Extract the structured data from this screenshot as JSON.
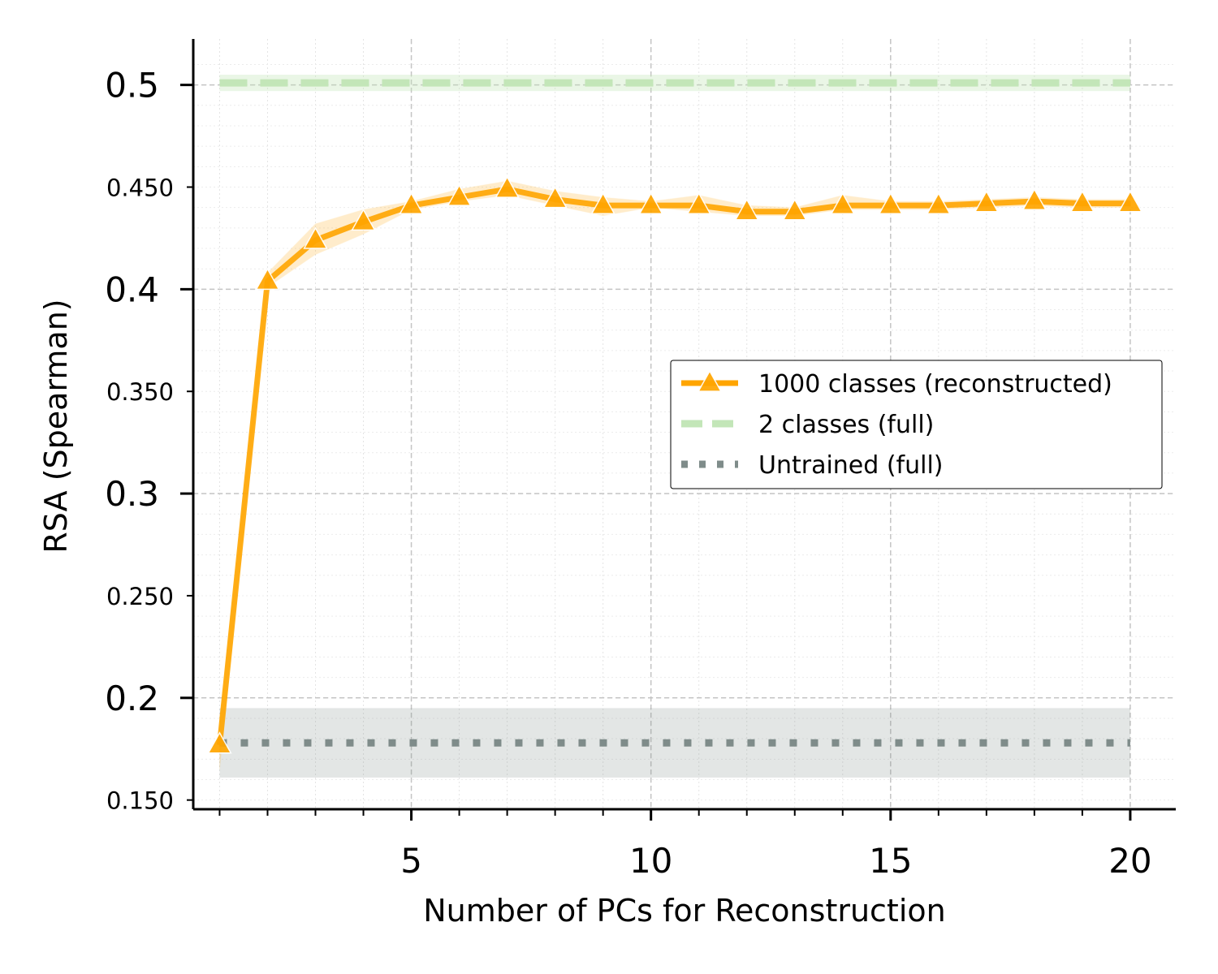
{
  "chart_data": {
    "type": "line",
    "xlabel": "Number of PCs for Reconstruction",
    "ylabel": "RSA (Spearman)",
    "xlim": [
      0.45,
      20.95
    ],
    "ylim": [
      0.1455,
      0.5225
    ],
    "x_ticks": [
      {
        "value": 5,
        "label": "5"
      },
      {
        "value": 10,
        "label": "10"
      },
      {
        "value": 15,
        "label": "15"
      },
      {
        "value": 20,
        "label": "20"
      }
    ],
    "x_minor_ticks": [
      1,
      2,
      3,
      4,
      6,
      7,
      8,
      9,
      11,
      12,
      13,
      14,
      16,
      17,
      18,
      19
    ],
    "y_major_ticks": [
      {
        "value": 0.2,
        "label": "0.2"
      },
      {
        "value": 0.3,
        "label": "0.3"
      },
      {
        "value": 0.4,
        "label": "0.4"
      },
      {
        "value": 0.5,
        "label": "0.5"
      }
    ],
    "y_minor_ticks": [
      {
        "value": 0.15,
        "label": "0.150"
      },
      {
        "value": 0.25,
        "label": "0.250"
      },
      {
        "value": 0.35,
        "label": "0.350"
      },
      {
        "value": 0.45,
        "label": "0.450"
      }
    ],
    "grid": true,
    "legend_position": "center-right",
    "series": [
      {
        "name": "1000 classes (reconstructed)",
        "style": "solid-triangle",
        "color": "#FFA500",
        "x": [
          1,
          2,
          3,
          4,
          5,
          6,
          7,
          8,
          9,
          10,
          11,
          12,
          13,
          14,
          15,
          16,
          17,
          18,
          19,
          20
        ],
        "y": [
          0.177,
          0.404,
          0.424,
          0.433,
          0.441,
          0.445,
          0.449,
          0.444,
          0.441,
          0.441,
          0.441,
          0.438,
          0.438,
          0.441,
          0.441,
          0.441,
          0.442,
          0.443,
          0.442,
          0.442
        ],
        "y_lower": [
          0.165,
          0.401,
          0.417,
          0.427,
          0.439,
          0.443,
          0.446,
          0.441,
          0.436,
          0.44,
          0.438,
          0.436,
          0.436,
          0.439,
          0.439,
          0.439,
          0.44,
          0.441,
          0.44,
          0.44
        ],
        "y_upper": [
          0.188,
          0.408,
          0.432,
          0.439,
          0.443,
          0.449,
          0.453,
          0.448,
          0.445,
          0.443,
          0.446,
          0.441,
          0.44,
          0.446,
          0.443,
          0.443,
          0.444,
          0.445,
          0.444,
          0.444
        ]
      },
      {
        "name": "2 classes (full)",
        "style": "dashed",
        "color": "#C3E6B8",
        "x_range": [
          1,
          20
        ],
        "value": 0.501,
        "band": [
          0.497,
          0.505
        ]
      },
      {
        "name": "Untrained (full)",
        "style": "dotted",
        "color": "#7F8C8A",
        "x_range": [
          1,
          20
        ],
        "value": 0.178,
        "band": [
          0.161,
          0.195
        ]
      }
    ]
  }
}
